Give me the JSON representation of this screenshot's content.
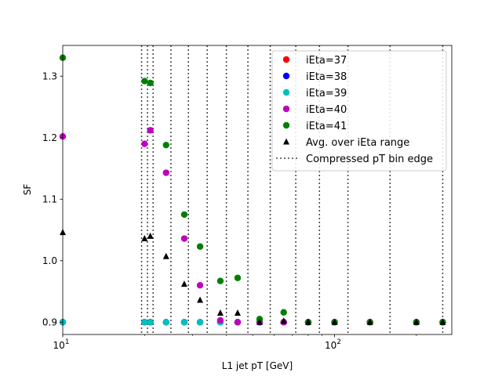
{
  "chart_data": {
    "type": "scatter",
    "xscale": "log",
    "xlabel": "L1 jet pT [GeV]",
    "ylabel": "SF",
    "xlim": [
      10,
      270
    ],
    "ylim": [
      0.88,
      1.35
    ],
    "xticks": [
      {
        "value": 10,
        "base": "10",
        "exp": "1"
      },
      {
        "value": 100,
        "base": "10",
        "exp": "2"
      }
    ],
    "yticks": [
      0.9,
      1.0,
      1.1,
      1.2,
      1.3
    ],
    "ytick_labels": [
      "0.9",
      "1.0",
      "1.1",
      "1.2",
      "1.3"
    ],
    "bin_edges": [
      19.5,
      20.5,
      21.5,
      25,
      29,
      34,
      40,
      48,
      58,
      72,
      88,
      112,
      160,
      250
    ],
    "legend_position": "top-right",
    "series": [
      {
        "name": "iEta=37",
        "marker": "circle",
        "color": "#ff0000",
        "x": [
          10,
          20,
          21,
          24,
          28,
          32,
          38,
          44,
          53,
          65,
          80,
          100,
          135,
          200,
          250
        ],
        "y": [
          0.9,
          0.9,
          0.9,
          0.9,
          0.9,
          0.9,
          0.9,
          0.9,
          0.9,
          0.9,
          0.9,
          0.9,
          0.9,
          0.9,
          0.9
        ]
      },
      {
        "name": "iEta=38",
        "marker": "circle",
        "color": "#0000ff",
        "x": [
          10,
          20,
          21,
          24,
          28,
          32,
          38,
          44,
          53,
          65,
          80,
          100,
          135,
          200,
          250
        ],
        "y": [
          0.9,
          0.9,
          0.9,
          0.9,
          0.9,
          0.9,
          0.9,
          0.9,
          0.9,
          0.9,
          0.9,
          0.9,
          0.9,
          0.9,
          0.9
        ]
      },
      {
        "name": "iEta=39",
        "marker": "circle",
        "color": "#00bfbf",
        "x": [
          10,
          20,
          21,
          24,
          28,
          32,
          38,
          44,
          53,
          65,
          80,
          100,
          135,
          200,
          250
        ],
        "y": [
          0.9,
          0.9,
          0.9,
          0.9,
          0.9,
          0.9,
          0.9,
          0.9,
          0.9,
          0.9,
          0.9,
          0.9,
          0.9,
          0.9,
          0.9
        ]
      },
      {
        "name": "iEta=40",
        "marker": "circle",
        "color": "#bf00bf",
        "x": [
          10,
          20,
          21,
          24,
          28,
          32,
          38,
          44,
          53,
          65,
          80,
          100,
          135,
          200,
          250
        ],
        "y": [
          1.202,
          1.19,
          1.212,
          1.143,
          1.036,
          0.96,
          0.903,
          0.9,
          0.9,
          0.9,
          0.9,
          0.9,
          0.9,
          0.9,
          0.9
        ]
      },
      {
        "name": "iEta=41",
        "marker": "circle",
        "color": "#008000",
        "x": [
          10,
          20,
          21,
          24,
          28,
          32,
          38,
          44,
          53,
          65,
          80,
          100,
          135,
          200,
          250
        ],
        "y": [
          1.33,
          1.292,
          1.289,
          1.188,
          1.075,
          1.023,
          0.967,
          0.972,
          0.905,
          0.916,
          0.9,
          0.9,
          0.9,
          0.9,
          0.9
        ]
      },
      {
        "name": "Avg. over iEta range",
        "marker": "triangle",
        "color": "#000000",
        "x": [
          10,
          20,
          21,
          24,
          28,
          32,
          38,
          44,
          53,
          65,
          80,
          100,
          135,
          200,
          250
        ],
        "y": [
          1.046,
          1.036,
          1.04,
          1.007,
          0.962,
          0.936,
          0.915,
          0.915,
          0.9,
          0.902,
          0.9,
          0.9,
          0.9,
          0.9,
          0.9
        ]
      }
    ],
    "bin_edge_legend": "Compressed pT bin edge",
    "colors": {
      "edge_line": "#444444"
    }
  }
}
